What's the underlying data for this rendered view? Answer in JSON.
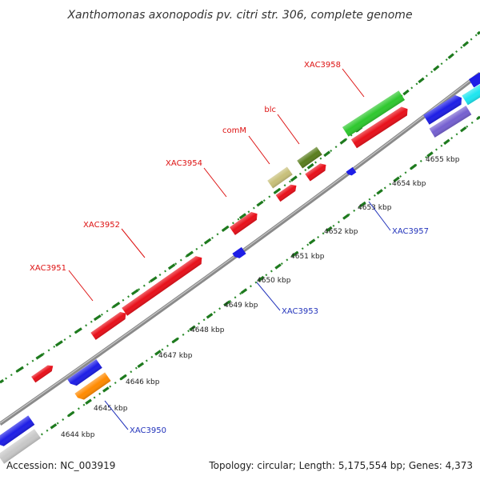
{
  "title": "Xanthomonas axonopodis pv. citri str. 306, complete genome",
  "footer": {
    "accession": "Accession: NC_003919",
    "summary": "Topology: circular; Length: 5,175,554 bp; Genes: 4,373"
  },
  "colors": {
    "backbone": "#8a8a8a",
    "dotted_ruler": "#2a8a2a",
    "forward_label": "#dd1111",
    "reverse_label": "#2233bb"
  },
  "ruler_labels": [
    "4644 kbp",
    "4645 kbp",
    "4646 kbp",
    "4647 kbp",
    "4648 kbp",
    "4649 kbp",
    "4650 kbp",
    "4651 kbp",
    "4652 kbp",
    "4653 kbp",
    "4654 kbp",
    "4655 kbp"
  ],
  "forward_labels": [
    "XAC3951",
    "XAC3952",
    "XAC3954",
    "comM",
    "blc",
    "XAC3958"
  ],
  "reverse_labels": [
    "XAC3950",
    "XAC3953",
    "XAC3957"
  ]
}
